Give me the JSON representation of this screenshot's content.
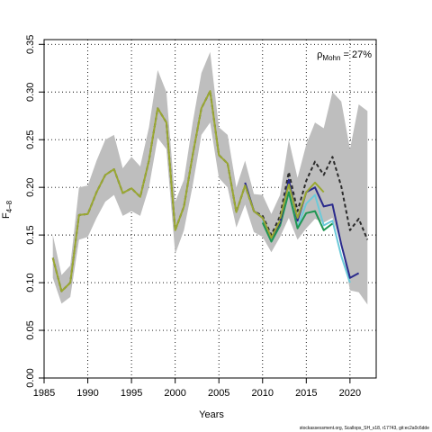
{
  "chart_data": {
    "type": "line",
    "xlabel": "Years",
    "ylabel": "F",
    "ylabel_sub": "4–8",
    "annotation": {
      "rho_symbol": "ρ",
      "rho_sub": "Mohn",
      "value_text": " = 27%"
    },
    "footer": "stockassessment.org, Scallops_SH_s18, r17743, git:ec2a0c6dde",
    "xlim": [
      1985,
      2023
    ],
    "ylim": [
      0,
      0.355
    ],
    "x_ticks": [
      1985,
      1990,
      1995,
      2000,
      2005,
      2010,
      2015,
      2020
    ],
    "y_ticks": [
      0.0,
      0.05,
      0.1,
      0.15,
      0.2,
      0.25,
      0.3,
      0.35
    ],
    "y_tick_labels": [
      "0.00",
      "0.05",
      "0.10",
      "0.15",
      "0.20",
      "0.25",
      "0.30",
      "0.35"
    ],
    "grid": true,
    "band": {
      "color": "#bebebe",
      "x": [
        1986,
        1987,
        1988,
        1989,
        1990,
        1991,
        1992,
        1993,
        1994,
        1995,
        1996,
        1997,
        1998,
        1999,
        2000,
        2001,
        2002,
        2003,
        2004,
        2005,
        2006,
        2007,
        2008,
        2009,
        2010,
        2011,
        2012,
        2013,
        2014,
        2015,
        2016,
        2017,
        2018,
        2019,
        2020,
        2021,
        2022
      ],
      "lower": [
        0.105,
        0.078,
        0.085,
        0.145,
        0.148,
        0.168,
        0.185,
        0.192,
        0.17,
        0.175,
        0.17,
        0.2,
        0.252,
        0.24,
        0.13,
        0.155,
        0.202,
        0.255,
        0.268,
        0.21,
        0.2,
        0.158,
        0.182,
        0.153,
        0.148,
        0.132,
        0.148,
        0.168,
        0.145,
        0.157,
        0.167,
        0.163,
        0.168,
        0.14,
        0.092,
        0.09,
        0.077
      ],
      "upper": [
        0.15,
        0.108,
        0.118,
        0.2,
        0.202,
        0.228,
        0.25,
        0.255,
        0.22,
        0.232,
        0.222,
        0.263,
        0.323,
        0.3,
        0.185,
        0.208,
        0.268,
        0.32,
        0.342,
        0.263,
        0.255,
        0.2,
        0.228,
        0.193,
        0.192,
        0.172,
        0.192,
        0.25,
        0.21,
        0.245,
        0.268,
        0.262,
        0.3,
        0.29,
        0.24,
        0.287,
        0.28
      ]
    },
    "series": [
      {
        "color": "#2b2b2b",
        "dash": true,
        "width": 2,
        "x": [
          1986,
          1987,
          1988,
          1989,
          1990,
          1991,
          1992,
          1993,
          1994,
          1995,
          1996,
          1997,
          1998,
          1999,
          2000,
          2001,
          2002,
          2003,
          2004,
          2005,
          2006,
          2007,
          2008,
          2009,
          2010,
          2011,
          2012,
          2013,
          2014,
          2015,
          2016,
          2017,
          2018,
          2019,
          2020,
          2021,
          2022
        ],
        "values": [
          0.126,
          0.091,
          0.1,
          0.171,
          0.172,
          0.195,
          0.213,
          0.219,
          0.194,
          0.199,
          0.19,
          0.228,
          0.283,
          0.268,
          0.155,
          0.18,
          0.234,
          0.283,
          0.301,
          0.234,
          0.225,
          0.174,
          0.202,
          0.175,
          0.17,
          0.15,
          0.17,
          0.216,
          0.175,
          0.207,
          0.227,
          0.213,
          0.232,
          0.201,
          0.155,
          0.167,
          0.145
        ]
      },
      {
        "color": "#6ccad9",
        "dash": false,
        "width": 2,
        "x": [
          2010,
          2011,
          2012,
          2013,
          2014,
          2015,
          2016,
          2017,
          2018,
          2019,
          2020
        ],
        "values": [
          0.165,
          0.143,
          0.16,
          0.195,
          0.158,
          0.183,
          0.192,
          0.16,
          0.165,
          0.128,
          0.1
        ]
      },
      {
        "color": "#1f9652",
        "dash": false,
        "width": 2,
        "x": [
          2010,
          2011,
          2012,
          2013,
          2014,
          2015,
          2016,
          2017,
          2018
        ],
        "values": [
          0.163,
          0.143,
          0.16,
          0.195,
          0.157,
          0.173,
          0.175,
          0.155,
          0.162
        ]
      },
      {
        "color": "#2a2a8c",
        "dash": false,
        "width": 2,
        "x": [
          2008,
          2009,
          2010,
          2011,
          2012,
          2013,
          2014,
          2015,
          2016,
          2017,
          2018,
          2019,
          2020,
          2021
        ],
        "values": [
          0.205,
          0.175,
          0.168,
          0.147,
          0.163,
          0.208,
          0.165,
          0.195,
          0.2,
          0.18,
          0.182,
          0.14,
          0.105,
          0.11
        ]
      },
      {
        "color": "#9aa832",
        "dash": false,
        "width": 2,
        "x": [
          2012,
          2013,
          2014,
          2015,
          2016,
          2017
        ],
        "values": [
          0.167,
          0.203,
          0.168,
          0.195,
          0.205,
          0.195
        ]
      },
      {
        "color": "#9aa832",
        "dash": false,
        "width": 2,
        "x": [
          1986,
          1987,
          1988,
          1989,
          1990,
          1991,
          1992,
          1993,
          1994,
          1995,
          1996,
          1997,
          1998,
          1999,
          2000,
          2001,
          2002,
          2003,
          2004,
          2005,
          2006,
          2007,
          2008,
          2009,
          2010,
          2011,
          2012
        ],
        "values": [
          0.126,
          0.091,
          0.1,
          0.171,
          0.172,
          0.195,
          0.213,
          0.219,
          0.194,
          0.199,
          0.19,
          0.228,
          0.283,
          0.268,
          0.155,
          0.18,
          0.234,
          0.283,
          0.301,
          0.234,
          0.225,
          0.174,
          0.202,
          0.175,
          0.168,
          0.147,
          0.165
        ]
      }
    ]
  }
}
